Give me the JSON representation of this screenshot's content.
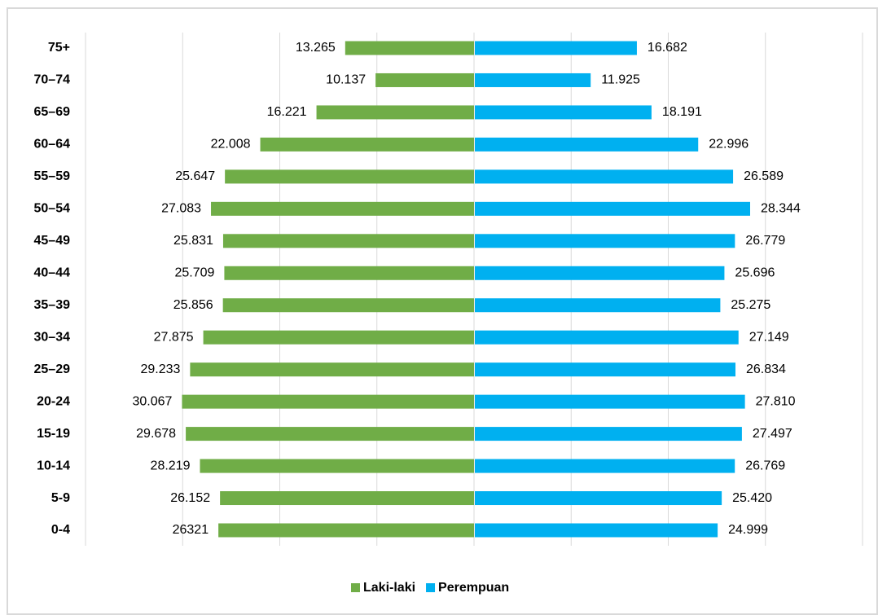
{
  "chart_data": {
    "type": "pyramid",
    "categories": [
      "75+",
      "70–74",
      "65–69",
      "60–64",
      "55–59",
      "50–54",
      "45–49",
      "40–44",
      "35–39",
      "30–34",
      "25–29",
      "20-24",
      "15-19",
      "10-14",
      "5-9",
      "0-4"
    ],
    "series": [
      {
        "name": "Laki-laki",
        "color": "#70ad47",
        "values": [
          13265,
          10137,
          16221,
          22008,
          25647,
          27083,
          25831,
          25709,
          25856,
          27875,
          29233,
          30067,
          29678,
          28219,
          26152,
          26321
        ],
        "value_labels": [
          "13.265",
          "10.137",
          "16.221",
          "22.008",
          "25.647",
          "27.083",
          "25.831",
          "25.709",
          "25.856",
          "27.875",
          "29.233",
          "30.067",
          "29.678",
          "28.219",
          "26.152",
          "26321"
        ]
      },
      {
        "name": "Perempuan",
        "color": "#00b0f0",
        "values": [
          16682,
          11925,
          18191,
          22996,
          26589,
          28344,
          26779,
          25696,
          25275,
          27149,
          26834,
          27810,
          27497,
          26769,
          25420,
          24999
        ],
        "value_labels": [
          "16.682",
          "11.925",
          "18.191",
          "22.996",
          "26.589",
          "28.344",
          "26.779",
          "25.696",
          "25.275",
          "27.149",
          "26.834",
          "27.810",
          "27.497",
          "26.769",
          "25.420",
          "24.999"
        ]
      }
    ],
    "xlim": [
      -40000,
      40000
    ],
    "xticks": [
      -40000,
      -30000,
      -20000,
      -10000,
      0,
      10000,
      20000,
      30000,
      40000
    ],
    "grid": true,
    "legend": "bottom"
  }
}
